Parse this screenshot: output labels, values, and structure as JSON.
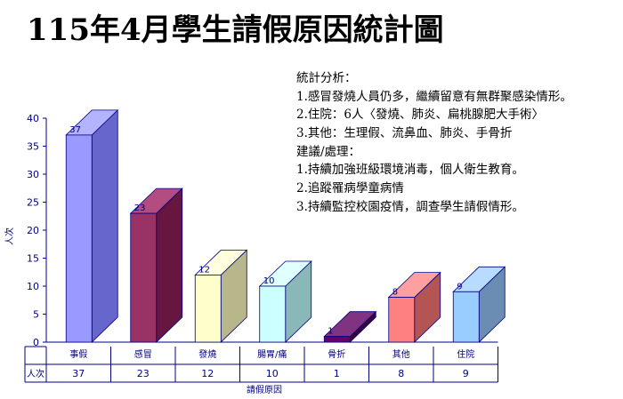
{
  "title": "115年4月學生請假原因統計圖",
  "analysis": {
    "heading": "統計分析：",
    "lines": [
      "1.感冒發燒人員仍多，繼續留意有無群聚感染情形。",
      "2.住院：6人〈發燒、肺炎、扁桃腺肥大手術〉",
      "3.其他：生理假、流鼻血、肺炎、手骨折"
    ],
    "advice_heading": "建議/處理：",
    "advice_lines": [
      "1.持續加強班級環境消毒，個人衛生教育。",
      "2.追蹤罹病學童病情",
      "3.持續監控校園疫情，調查學生請假情形。"
    ]
  },
  "chart_data": {
    "type": "bar",
    "title": "",
    "xlabel": "請假原因",
    "ylabel": "人次",
    "ylim": [
      0,
      40
    ],
    "yticks": [
      0,
      5,
      10,
      15,
      20,
      25,
      30,
      35,
      40
    ],
    "categories": [
      "事假",
      "感冒",
      "發燒",
      "腸胃/痛",
      "骨折",
      "其他",
      "住院"
    ],
    "series": [
      {
        "name": "人次",
        "values": [
          37,
          23,
          12,
          10,
          1,
          8,
          9
        ]
      }
    ],
    "data_table": true,
    "grid": false,
    "colors": [
      "#9999ff",
      "#993366",
      "#ffffcc",
      "#ccffff",
      "#660066",
      "#ff8080",
      "#99ccff"
    ],
    "side_colors": [
      "#6666cc",
      "#66163f",
      "#b7b78a",
      "#8ab7b7",
      "#3a003a",
      "#b35555",
      "#6b8cb3"
    ],
    "top_colors": [
      "#b3b3ff",
      "#b34d80",
      "#ffffe0",
      "#e0ffff",
      "#803380",
      "#ffa0a0",
      "#b8dcff"
    ]
  }
}
